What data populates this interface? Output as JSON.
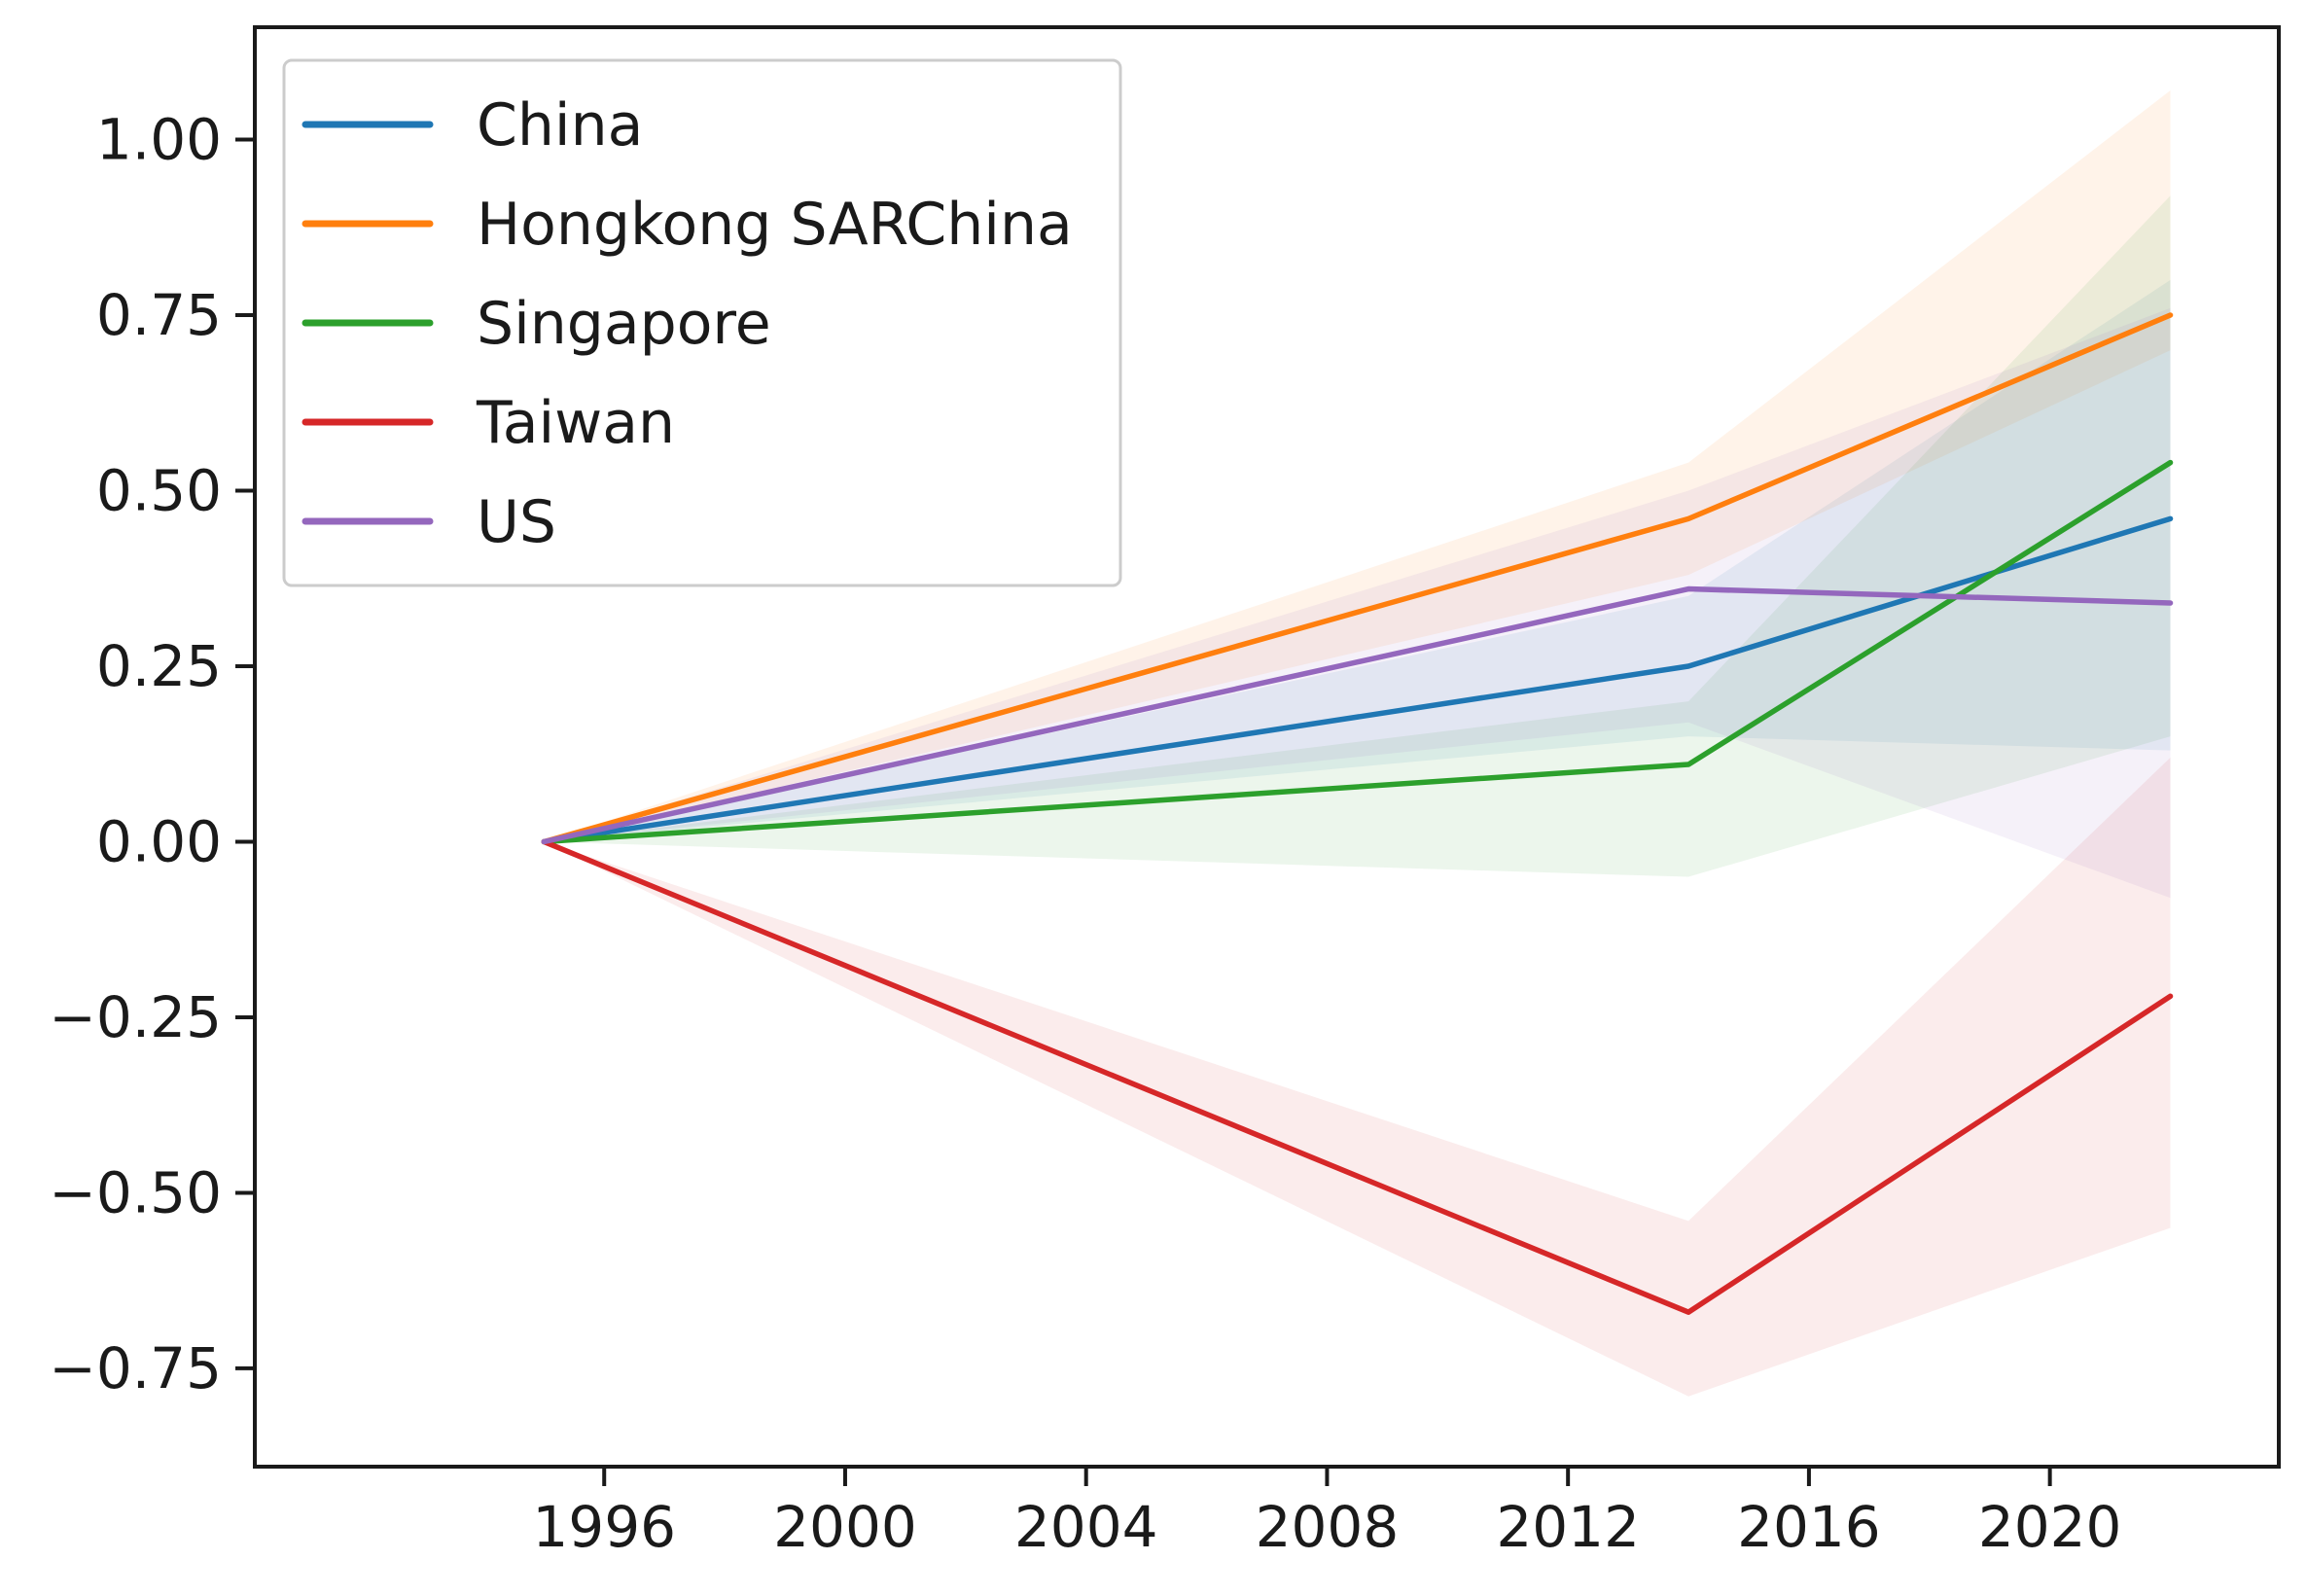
{
  "chart_data": {
    "type": "line",
    "title": "",
    "xlabel": "",
    "ylabel": "",
    "xlim": [
      1990.2,
      2023.8
    ],
    "ylim": [
      -0.89,
      1.16
    ],
    "xticks": [
      {
        "value": 1996,
        "label": "1996"
      },
      {
        "value": 2000,
        "label": "2000"
      },
      {
        "value": 2004,
        "label": "2004"
      },
      {
        "value": 2008,
        "label": "2008"
      },
      {
        "value": 2012,
        "label": "2012"
      },
      {
        "value": 2016,
        "label": "2016"
      },
      {
        "value": 2020,
        "label": "2020"
      }
    ],
    "yticks": [
      {
        "value": 1.0,
        "label": "1.00"
      },
      {
        "value": 0.75,
        "label": "0.75"
      },
      {
        "value": 0.5,
        "label": "0.50"
      },
      {
        "value": 0.25,
        "label": "0.25"
      },
      {
        "value": 0.0,
        "label": "0.00"
      },
      {
        "value": -0.25,
        "label": "−0.25"
      },
      {
        "value": -0.5,
        "label": "−0.50"
      },
      {
        "value": -0.75,
        "label": "−0.75"
      }
    ],
    "grid": false,
    "legend_position": "top-left",
    "x": [
      1995,
      2014,
      2022
    ],
    "series": [
      {
        "name": "China",
        "color": "#1f77b4",
        "values": [
          0.0,
          0.25,
          0.46
        ],
        "lower": [
          0.0,
          0.15,
          0.13
        ],
        "upper": [
          0.0,
          0.35,
          0.8
        ]
      },
      {
        "name": "Hongkong SARChina",
        "color": "#ff7f0e",
        "values": [
          0.0,
          0.46,
          0.75
        ],
        "lower": [
          0.0,
          0.38,
          0.7
        ],
        "upper": [
          0.0,
          0.54,
          1.07
        ]
      },
      {
        "name": "Singapore",
        "color": "#2ca02c",
        "values": [
          0.0,
          0.11,
          0.54
        ],
        "lower": [
          0.0,
          -0.05,
          0.15
        ],
        "upper": [
          0.0,
          0.2,
          0.92
        ]
      },
      {
        "name": "Taiwan",
        "color": "#d62728",
        "values": [
          0.0,
          -0.67,
          -0.22
        ],
        "lower": [
          0.0,
          -0.79,
          -0.55
        ],
        "upper": [
          0.0,
          -0.54,
          0.12
        ]
      },
      {
        "name": "US",
        "color": "#9467bd",
        "values": [
          0.0,
          0.36,
          0.34
        ],
        "lower": [
          0.0,
          0.17,
          -0.08
        ],
        "upper": [
          0.0,
          0.5,
          0.76
        ]
      }
    ]
  }
}
